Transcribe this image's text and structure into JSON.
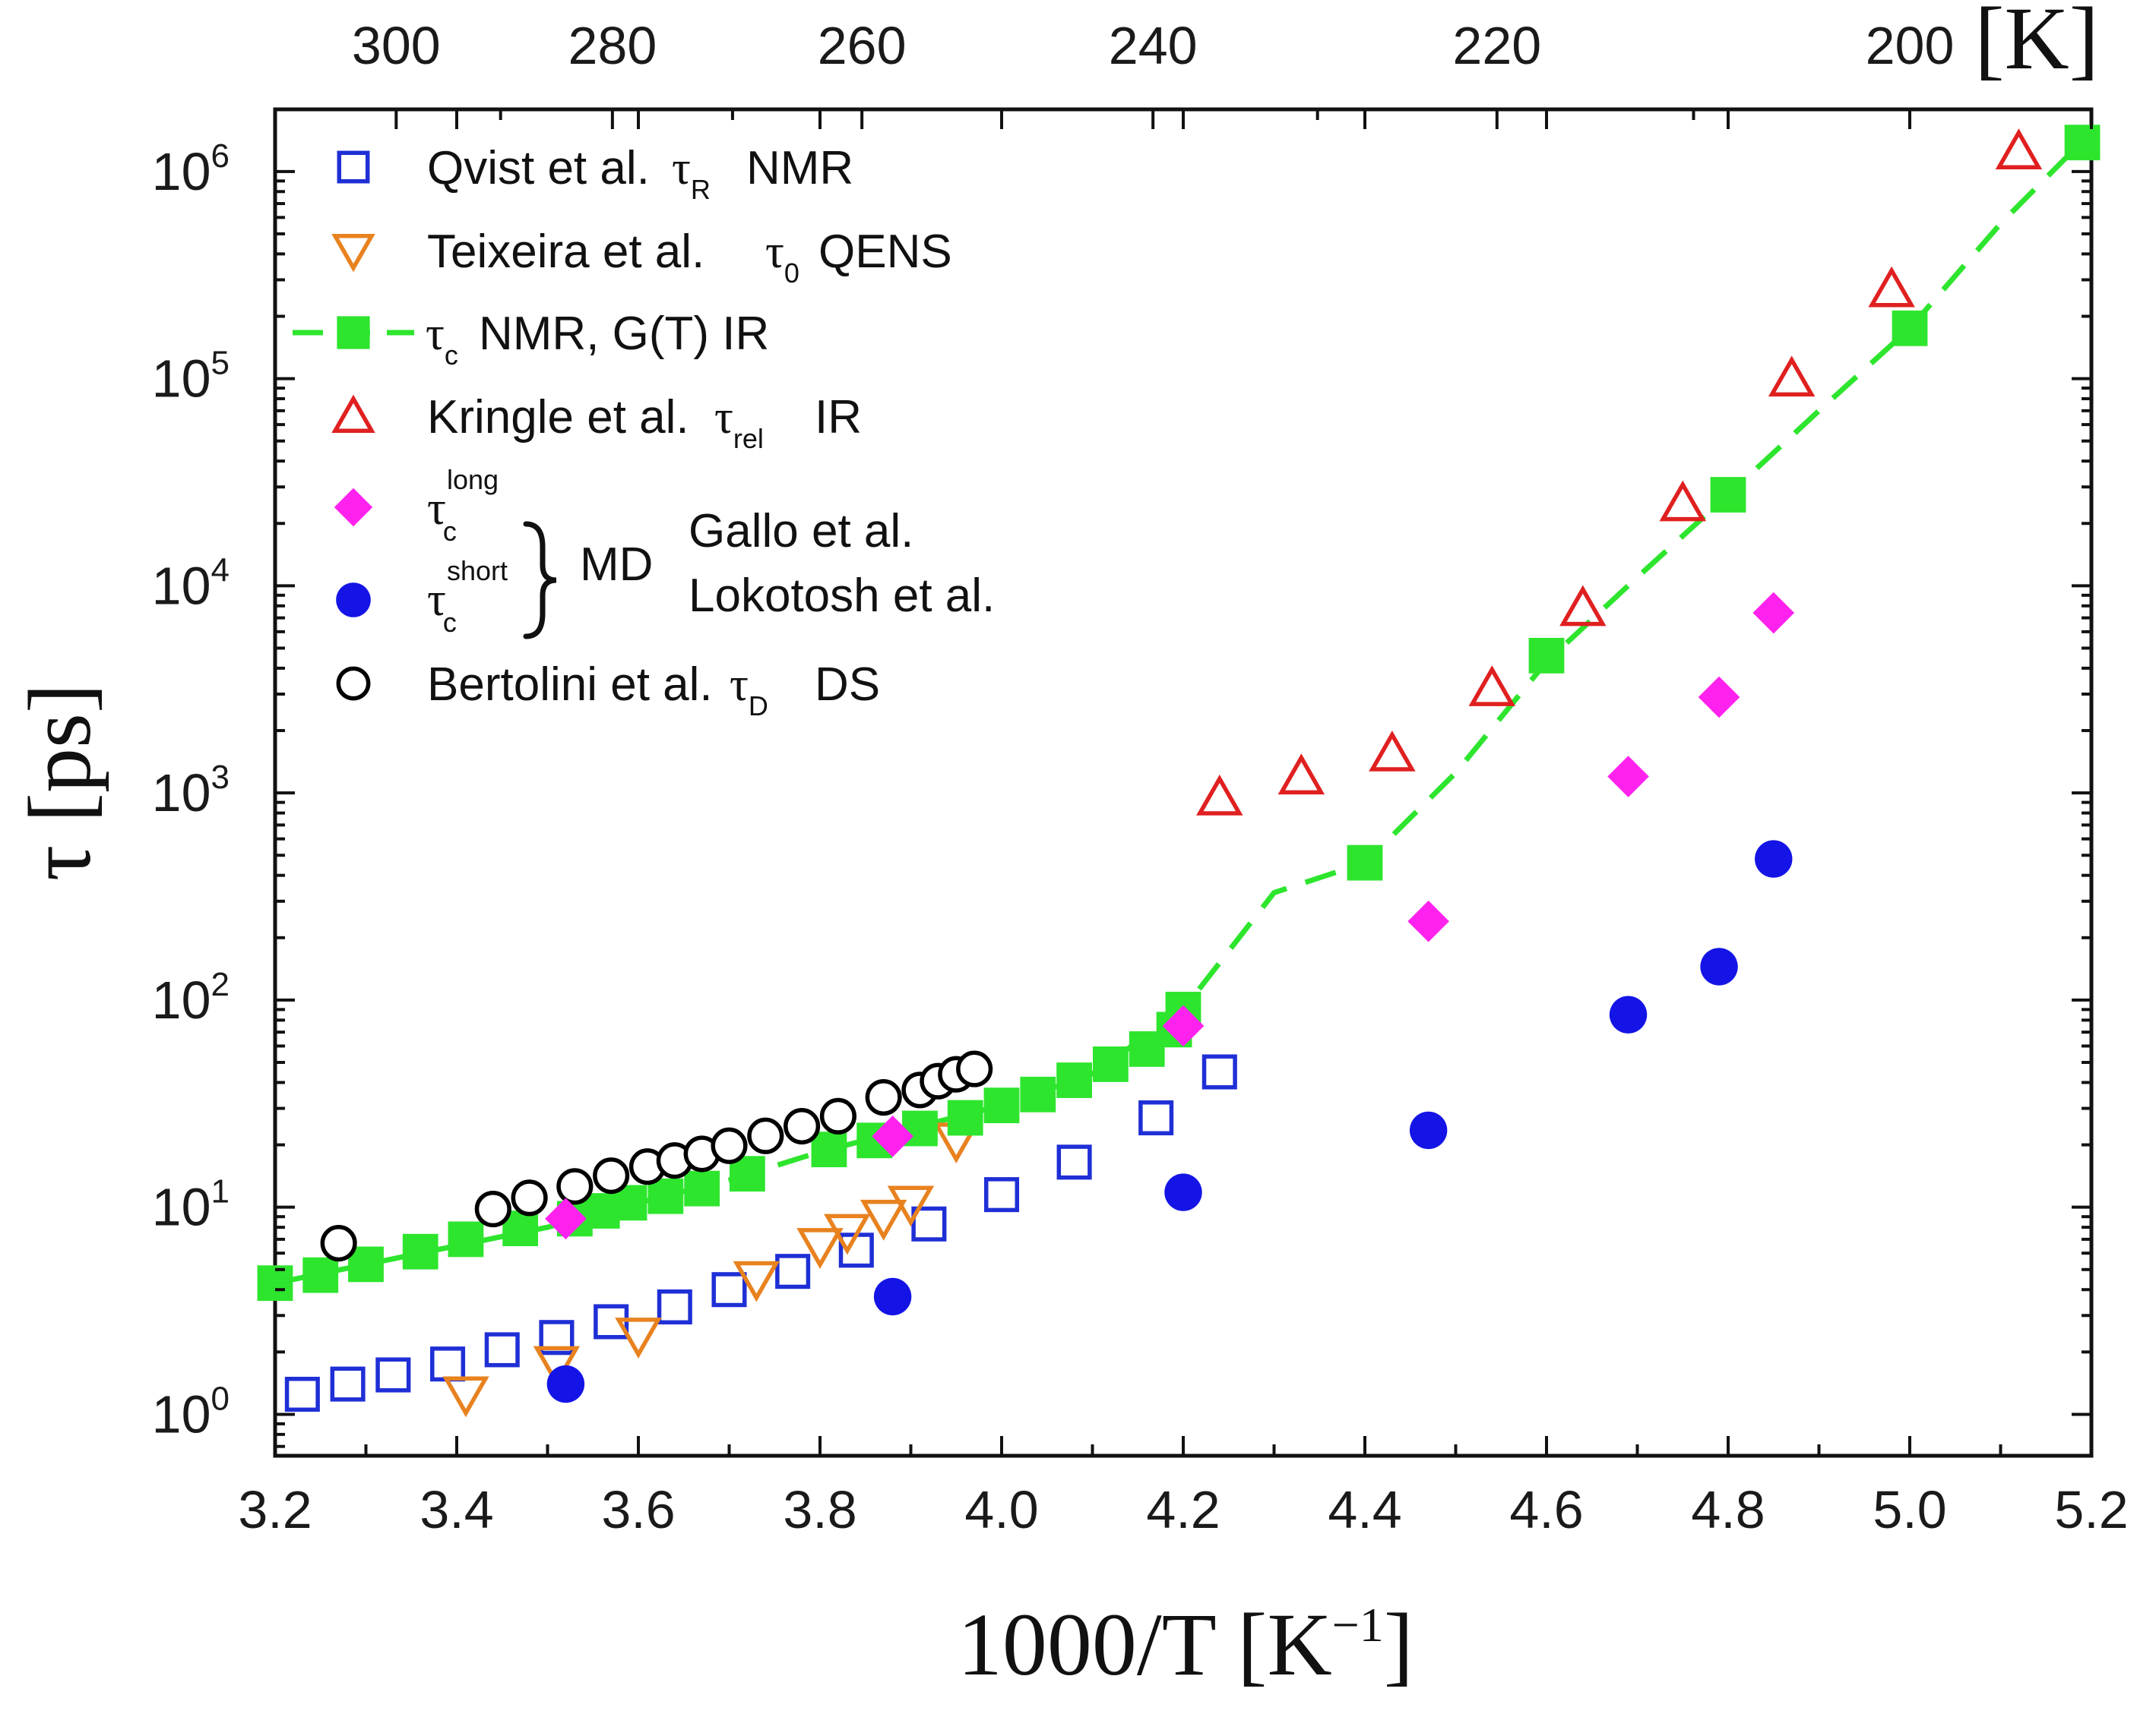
{
  "chart_data": {
    "type": "scatter",
    "xlabel": "1000/T",
    "xlabel_unit": "[K",
    "xlabel_unit_exp": "−1",
    "xlabel_unit_close": "]",
    "ylabel_symbol": "τ",
    "ylabel_unit": "[ps]",
    "top_axis_unit": "[K]",
    "xlim": [
      3.2,
      5.2
    ],
    "ylim_log10": [
      -0.2,
      6.3
    ],
    "x_ticks": [
      "3.2",
      "3.4",
      "3.6",
      "3.8",
      "4.0",
      "4.2",
      "4.4",
      "4.6",
      "4.8",
      "5.0",
      "5.2"
    ],
    "y_tick_base": "10",
    "y_tick_exponents": [
      "0",
      "1",
      "2",
      "3",
      "4",
      "5",
      "6"
    ],
    "top_ticks": [
      "300",
      "280",
      "260",
      "240",
      "220",
      "200"
    ],
    "series": [
      {
        "key": "qvist",
        "name": "Qvist et al.",
        "symbol": "τ",
        "sub": "R",
        "method": "NMR",
        "marker": "square-open",
        "color": "#1f2fd6",
        "points": [
          [
            3.23,
            1.25
          ],
          [
            3.28,
            1.4
          ],
          [
            3.33,
            1.55
          ],
          [
            3.39,
            1.75
          ],
          [
            3.45,
            2.05
          ],
          [
            3.51,
            2.35
          ],
          [
            3.57,
            2.8
          ],
          [
            3.64,
            3.3
          ],
          [
            3.7,
            4.0
          ],
          [
            3.77,
            4.9
          ],
          [
            3.84,
            6.2
          ],
          [
            3.92,
            8.3
          ],
          [
            4.0,
            11.5
          ],
          [
            4.08,
            16.5
          ],
          [
            4.17,
            27
          ],
          [
            4.24,
            45
          ]
        ]
      },
      {
        "key": "teixeira",
        "name": "Teixeira et al.",
        "symbol": "τ",
        "sub": "0",
        "method": "QENS",
        "marker": "triangle-down-open",
        "color": "#e8821f",
        "points": [
          [
            3.41,
            1.25
          ],
          [
            3.51,
            1.75
          ],
          [
            3.6,
            2.4
          ],
          [
            3.73,
            4.5
          ],
          [
            3.8,
            6.5
          ],
          [
            3.83,
            7.6
          ],
          [
            3.87,
            8.9
          ],
          [
            3.9,
            10.4
          ],
          [
            3.95,
            21
          ]
        ]
      },
      {
        "key": "nmr_ir",
        "name": "NMR, G(T) IR",
        "symbol": "τ",
        "sub": "c",
        "method": "",
        "marker": "square-filled",
        "color": "#2ee52e",
        "points": [
          [
            3.2,
            4.3
          ],
          [
            3.25,
            4.7
          ],
          [
            3.3,
            5.3
          ],
          [
            3.36,
            6.1
          ],
          [
            3.41,
            7.0
          ],
          [
            3.47,
            7.9
          ],
          [
            3.53,
            8.8
          ],
          [
            3.56,
            9.6
          ],
          [
            3.59,
            10.5
          ],
          [
            3.63,
            11.3
          ],
          [
            3.67,
            12.3
          ],
          [
            3.72,
            14.5
          ],
          [
            3.81,
            19
          ],
          [
            3.86,
            21
          ],
          [
            3.91,
            24
          ],
          [
            3.96,
            27
          ],
          [
            4.0,
            31
          ],
          [
            4.04,
            35
          ],
          [
            4.08,
            41
          ],
          [
            4.12,
            49
          ],
          [
            4.16,
            58
          ],
          [
            4.19,
            72
          ],
          [
            4.2,
            90
          ],
          [
            4.4,
            460
          ],
          [
            4.6,
            4600
          ],
          [
            4.8,
            27500
          ],
          [
            5.0,
            175000
          ],
          [
            5.19,
            1380000
          ]
        ],
        "fit_line": [
          [
            3.2,
            4.3
          ],
          [
            3.36,
            6.0
          ],
          [
            3.5,
            8.0
          ],
          [
            3.6,
            10.5
          ],
          [
            3.7,
            13.5
          ],
          [
            3.8,
            18.5
          ],
          [
            3.9,
            24
          ],
          [
            4.0,
            31
          ],
          [
            4.1,
            44
          ],
          [
            4.2,
            90
          ],
          [
            4.3,
            330
          ],
          [
            4.4,
            460
          ],
          [
            4.5,
            1250
          ],
          [
            4.6,
            4300
          ],
          [
            4.7,
            11000
          ],
          [
            4.8,
            27500
          ],
          [
            4.9,
            70000
          ],
          [
            5.0,
            175000
          ],
          [
            5.1,
            560000
          ],
          [
            5.19,
            1400000
          ]
        ]
      },
      {
        "key": "kringle",
        "name": "Kringle et al.",
        "symbol": "τ",
        "sub": "rel",
        "method": "IR",
        "marker": "triangle-up-open",
        "color": "#e02020",
        "points": [
          [
            4.24,
            950
          ],
          [
            4.33,
            1200
          ],
          [
            4.43,
            1550
          ],
          [
            4.54,
            3200
          ],
          [
            4.64,
            7800
          ],
          [
            4.75,
            25000
          ],
          [
            4.87,
            100000
          ],
          [
            4.98,
            270000
          ],
          [
            5.12,
            1250000
          ]
        ]
      },
      {
        "key": "gallo_long",
        "name": "Gallo et al.",
        "symbol": "τ",
        "sub": "c",
        "sup": "long",
        "method": "MD",
        "marker": "diamond-filled",
        "color": "#ff22ee",
        "points": [
          [
            3.52,
            8.8
          ],
          [
            3.88,
            22
          ],
          [
            4.2,
            75
          ],
          [
            4.47,
            240
          ],
          [
            4.69,
            1200
          ],
          [
            4.79,
            2900
          ],
          [
            4.85,
            7400
          ]
        ]
      },
      {
        "key": "lokotosh_short",
        "name": "Lokotosh et al.",
        "symbol": "τ",
        "sub": "c",
        "sup": "short",
        "method": "MD",
        "marker": "circle-filled",
        "color": "#1414e6",
        "points": [
          [
            3.52,
            1.4
          ],
          [
            3.88,
            3.7
          ],
          [
            4.2,
            11.8
          ],
          [
            4.47,
            23.5
          ],
          [
            4.69,
            85
          ],
          [
            4.79,
            145
          ],
          [
            4.85,
            480
          ]
        ]
      },
      {
        "key": "bertolini",
        "name": "Bertolini et al.",
        "symbol": "τ",
        "sub": "D",
        "method": "DS",
        "marker": "circle-open",
        "color": "#000000",
        "points": [
          [
            3.27,
            6.7
          ],
          [
            3.44,
            9.8
          ],
          [
            3.48,
            11.1
          ],
          [
            3.53,
            12.6
          ],
          [
            3.57,
            14.2
          ],
          [
            3.61,
            15.7
          ],
          [
            3.64,
            16.8
          ],
          [
            3.67,
            18.1
          ],
          [
            3.7,
            19.8
          ],
          [
            3.74,
            22.1
          ],
          [
            3.78,
            24.6
          ],
          [
            3.82,
            27.5
          ],
          [
            3.87,
            33.9
          ],
          [
            3.91,
            36.8
          ],
          [
            3.93,
            40.6
          ],
          [
            3.95,
            43.8
          ],
          [
            3.97,
            46.5
          ]
        ]
      }
    ],
    "legend": {
      "position": "top-left",
      "bracket_label": "MD"
    }
  }
}
